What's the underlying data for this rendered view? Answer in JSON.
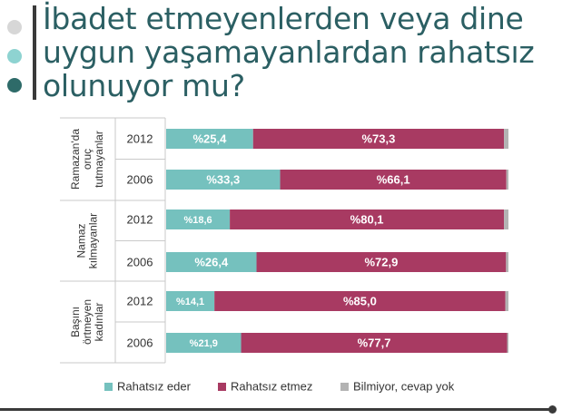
{
  "title": "İbadet etmeyenlerden veya dine uygun yaşamayanlardan rahatsız olunuyor mu?",
  "colors": {
    "title": "#2b5f63",
    "bullet_1": "#d7d7d7",
    "bullet_2": "#8ed3d1",
    "bullet_3": "#2e6b69",
    "rahatsiz_eder": "#75c1be",
    "rahatsiz_etmez": "#a83a62",
    "bilmiyor": "#b3b3b3"
  },
  "chart_data": {
    "type": "bar",
    "orientation": "horizontal",
    "stacked": true,
    "normalized_to": 100,
    "groups": [
      {
        "label": "Ramazan'da oruç tutmayanlar",
        "label_lines": [
          "Ramazan'da",
          "oruç",
          "tutmayanlar"
        ]
      },
      {
        "label": "Namaz kılmayanlar",
        "label_lines": [
          "Namaz",
          "kılmayanlar"
        ]
      },
      {
        "label": "Başını örtmeyen kadınlar",
        "label_lines": [
          "Başını",
          "örtmeyen",
          "kadınlar"
        ]
      }
    ],
    "categories": [
      {
        "group": 0,
        "year": "2012"
      },
      {
        "group": 0,
        "year": "2006"
      },
      {
        "group": 1,
        "year": "2012"
      },
      {
        "group": 1,
        "year": "2006"
      },
      {
        "group": 2,
        "year": "2012"
      },
      {
        "group": 2,
        "year": "2006"
      }
    ],
    "series": [
      {
        "name": "Rahatsız eder",
        "values": [
          25.4,
          33.3,
          18.6,
          26.4,
          14.1,
          21.9
        ],
        "labels": [
          "%25,4",
          "%33,3",
          "%18,6",
          "%26,4",
          "%14,1",
          "%21,9"
        ]
      },
      {
        "name": "Rahatsız etmez",
        "values": [
          73.3,
          66.1,
          80.1,
          72.9,
          85.0,
          77.7
        ],
        "labels": [
          "%73,3",
          "%66,1",
          "%80,1",
          "%72,9",
          "%85,0",
          "%77,7"
        ]
      },
      {
        "name": "Bilmiyor, cevap yok",
        "values": [
          1.3,
          0.6,
          1.3,
          0.7,
          0.9,
          0.4
        ],
        "labels": [
          "",
          "",
          "",
          "",
          "",
          ""
        ]
      }
    ],
    "legend": {
      "position": "bottom",
      "entries": [
        "Rahatsız eder",
        "Rahatsız etmez",
        "Bilmiyor, cevap yok"
      ]
    },
    "xlim": [
      0,
      100
    ],
    "grid": false
  }
}
